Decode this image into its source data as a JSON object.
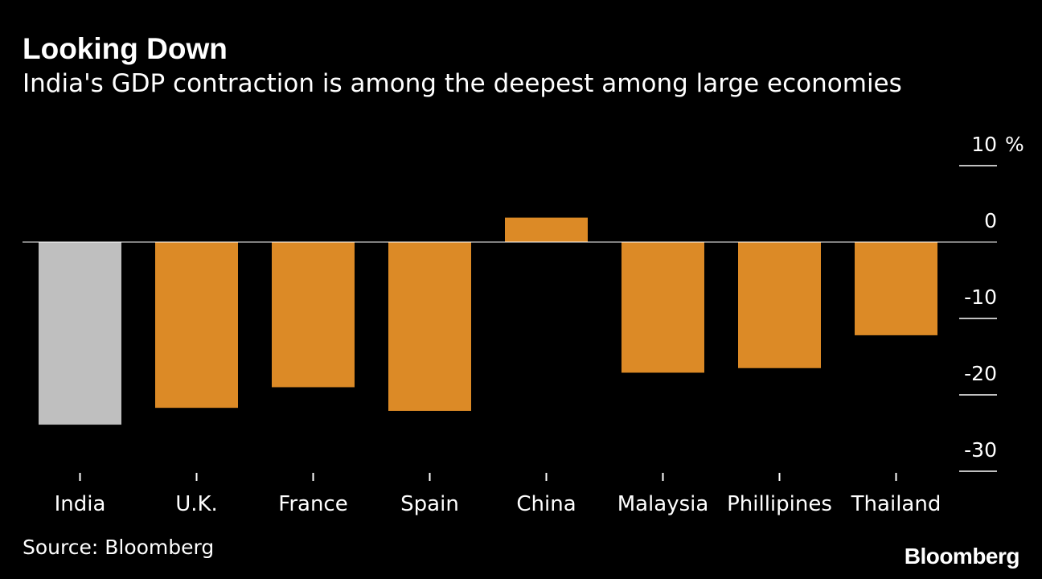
{
  "header": {
    "title": "Looking Down",
    "subtitle": "India's GDP contraction is among the deepest among large economies"
  },
  "footer": {
    "source": "Source: Bloomberg",
    "brand": "Bloomberg"
  },
  "colors": {
    "background": "#000000",
    "highlight": "#bfbfbf",
    "bar": "#dc8a26",
    "text": "#ffffff",
    "baseline": "#ffffff"
  },
  "chart_data": {
    "type": "bar",
    "title": "Looking Down",
    "subtitle": "India's GDP contraction is among the deepest among large economies",
    "xlabel": "",
    "ylabel": "%",
    "ylim": [
      -30,
      10
    ],
    "yticks": [
      10,
      0,
      -10,
      -20,
      -30
    ],
    "ytick_labels": [
      "10",
      "0",
      "-10",
      "-20",
      "-30"
    ],
    "unit": "%",
    "categories": [
      "India",
      "U.K.",
      "France",
      "Spain",
      "China",
      "Malaysia",
      "Phillipines",
      "Thailand"
    ],
    "values": [
      -23.9,
      -21.7,
      -19.0,
      -22.1,
      3.2,
      -17.1,
      -16.5,
      -12.2
    ],
    "highlight_category": "India",
    "grid": false
  }
}
